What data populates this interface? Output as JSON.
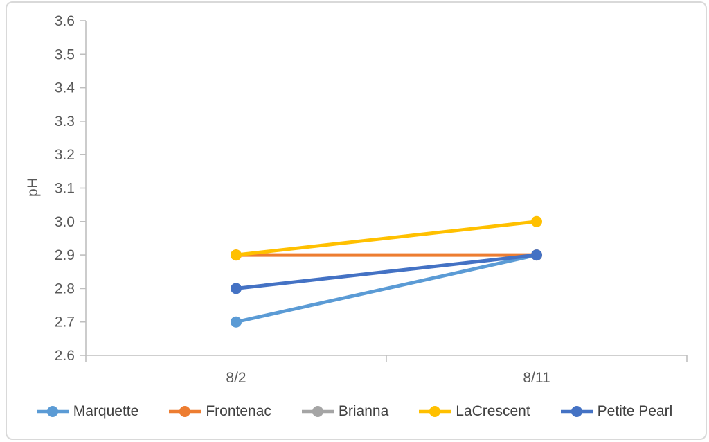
{
  "frame": {
    "background": "#ffffff",
    "border_color": "#d9d9d9"
  },
  "axes": {
    "line_color": "#bfbfbf",
    "text_color": "#595959"
  },
  "chart_data": {
    "type": "line",
    "title": "",
    "xlabel": "",
    "ylabel": "pH",
    "categories": [
      "8/2",
      "8/11"
    ],
    "ylim": [
      2.6,
      3.6
    ],
    "ytick_step": 0.1,
    "ytick_decimals": 1,
    "grid": false,
    "legend_position": "bottom",
    "marker": "circle",
    "series": [
      {
        "name": "Marquette",
        "color": "#5B9BD5",
        "values": [
          2.7,
          2.9
        ]
      },
      {
        "name": "Frontenac",
        "color": "#ED7D31",
        "values": [
          2.9,
          2.9
        ]
      },
      {
        "name": "Brianna",
        "color": "#A5A5A5",
        "values": [
          null,
          null
        ]
      },
      {
        "name": "LaCrescent",
        "color": "#FFC000",
        "values": [
          2.9,
          3.0
        ]
      },
      {
        "name": "Petite Pearl",
        "color": "#4472C4",
        "values": [
          2.8,
          2.9
        ]
      }
    ]
  }
}
